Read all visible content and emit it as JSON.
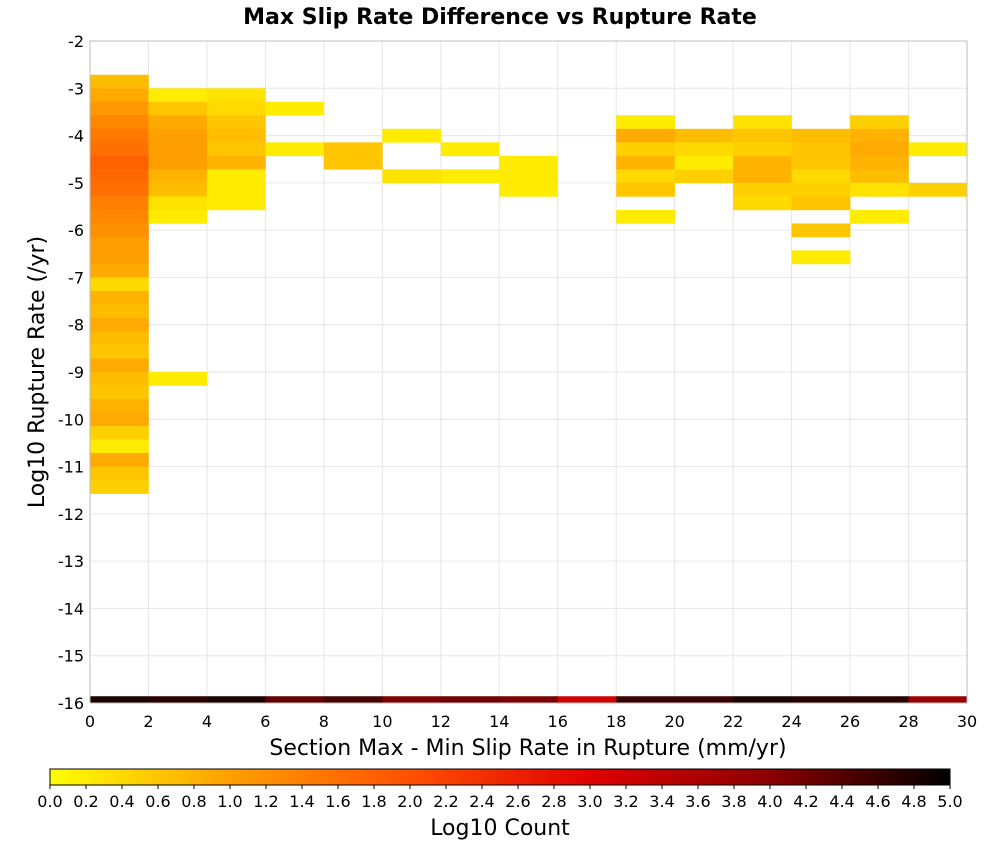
{
  "chart_data": {
    "type": "heatmap",
    "title": "Max Slip Rate Difference vs Rupture Rate",
    "xlabel": "Section Max - Min Slip Rate in Rupture (mm/yr)",
    "ylabel": "Log10 Rupture Rate (/yr)",
    "xlim": [
      0,
      30
    ],
    "ylim": [
      -16,
      -2
    ],
    "x_ticks": [
      "0",
      "2",
      "4",
      "6",
      "8",
      "10",
      "12",
      "14",
      "16",
      "18",
      "20",
      "22",
      "24",
      "26",
      "28",
      "30"
    ],
    "y_ticks": [
      "-2",
      "-3",
      "-4",
      "-5",
      "-6",
      "-7",
      "-8",
      "-9",
      "-10",
      "-11",
      "-12",
      "-13",
      "-14",
      "-15",
      "-16"
    ],
    "x_bin_width": 2,
    "y_bin_height": 0.2857,
    "colorbar": {
      "label": "Log10 Count",
      "range": [
        0,
        5
      ],
      "ticks": [
        "0.0",
        "0.2",
        "0.4",
        "0.6",
        "0.8",
        "1.0",
        "1.2",
        "1.4",
        "1.6",
        "1.8",
        "2.0",
        "2.2",
        "2.4",
        "2.6",
        "2.8",
        "3.0",
        "3.2",
        "3.4",
        "3.6",
        "3.8",
        "4.0",
        "4.2",
        "4.4",
        "4.6",
        "4.8",
        "5.0"
      ],
      "colors": [
        "#ffff00",
        "#ffa000",
        "#ff5000",
        "#e00000",
        "#8a0000",
        "#000000"
      ]
    },
    "cells": [
      {
        "x": 1,
        "y": -2.857,
        "v": 0.7
      },
      {
        "x": 1,
        "y": -3.143,
        "v": 0.9
      },
      {
        "x": 1,
        "y": -3.429,
        "v": 1.1
      },
      {
        "x": 1,
        "y": -3.714,
        "v": 1.3
      },
      {
        "x": 1,
        "y": -4.0,
        "v": 1.5
      },
      {
        "x": 1,
        "y": -4.286,
        "v": 1.6
      },
      {
        "x": 1,
        "y": -4.571,
        "v": 1.8
      },
      {
        "x": 1,
        "y": -4.857,
        "v": 1.7
      },
      {
        "x": 1,
        "y": -5.143,
        "v": 1.6
      },
      {
        "x": 1,
        "y": -5.429,
        "v": 1.4
      },
      {
        "x": 1,
        "y": -5.714,
        "v": 1.3
      },
      {
        "x": 1,
        "y": -6.0,
        "v": 1.2
      },
      {
        "x": 1,
        "y": -6.286,
        "v": 1.0
      },
      {
        "x": 1,
        "y": -6.571,
        "v": 1.0
      },
      {
        "x": 1,
        "y": -6.857,
        "v": 0.9
      },
      {
        "x": 1,
        "y": -7.143,
        "v": 0.4
      },
      {
        "x": 1,
        "y": -7.429,
        "v": 0.8
      },
      {
        "x": 1,
        "y": -7.714,
        "v": 0.7
      },
      {
        "x": 1,
        "y": -8.0,
        "v": 0.9
      },
      {
        "x": 1,
        "y": -8.286,
        "v": 0.7
      },
      {
        "x": 1,
        "y": -8.571,
        "v": 0.6
      },
      {
        "x": 1,
        "y": -8.857,
        "v": 0.9
      },
      {
        "x": 1,
        "y": -9.143,
        "v": 0.7
      },
      {
        "x": 1,
        "y": -9.429,
        "v": 0.6
      },
      {
        "x": 1,
        "y": -9.714,
        "v": 0.8
      },
      {
        "x": 1,
        "y": -10.0,
        "v": 0.9
      },
      {
        "x": 1,
        "y": -10.286,
        "v": 0.5
      },
      {
        "x": 1,
        "y": -10.571,
        "v": 0.2
      },
      {
        "x": 1,
        "y": -10.857,
        "v": 0.9
      },
      {
        "x": 1,
        "y": -11.143,
        "v": 0.6
      },
      {
        "x": 1,
        "y": -11.429,
        "v": 0.5
      },
      {
        "x": 3,
        "y": -3.143,
        "v": 0.2
      },
      {
        "x": 3,
        "y": -3.429,
        "v": 0.6
      },
      {
        "x": 3,
        "y": -3.714,
        "v": 0.9
      },
      {
        "x": 3,
        "y": -4.0,
        "v": 1.0
      },
      {
        "x": 3,
        "y": -4.286,
        "v": 1.0
      },
      {
        "x": 3,
        "y": -4.571,
        "v": 1.0
      },
      {
        "x": 3,
        "y": -4.857,
        "v": 0.8
      },
      {
        "x": 3,
        "y": -5.143,
        "v": 0.7
      },
      {
        "x": 3,
        "y": -5.429,
        "v": 0.3
      },
      {
        "x": 3,
        "y": -5.714,
        "v": 0.2
      },
      {
        "x": 3,
        "y": -9.143,
        "v": 0.2
      },
      {
        "x": 5,
        "y": -3.143,
        "v": 0.3
      },
      {
        "x": 5,
        "y": -3.429,
        "v": 0.4
      },
      {
        "x": 5,
        "y": -3.714,
        "v": 0.6
      },
      {
        "x": 5,
        "y": -4.0,
        "v": 0.7
      },
      {
        "x": 5,
        "y": -4.286,
        "v": 0.6
      },
      {
        "x": 5,
        "y": -4.571,
        "v": 0.8
      },
      {
        "x": 5,
        "y": -4.857,
        "v": 0.2
      },
      {
        "x": 5,
        "y": -5.143,
        "v": 0.2
      },
      {
        "x": 5,
        "y": -5.429,
        "v": 0.2
      },
      {
        "x": 7,
        "y": -3.429,
        "v": 0.2
      },
      {
        "x": 7,
        "y": -4.286,
        "v": 0.2
      },
      {
        "x": 9,
        "y": -4.286,
        "v": 0.6
      },
      {
        "x": 9,
        "y": -4.571,
        "v": 0.6
      },
      {
        "x": 11,
        "y": -4.0,
        "v": 0.2
      },
      {
        "x": 11,
        "y": -4.857,
        "v": 0.3
      },
      {
        "x": 13,
        "y": -4.286,
        "v": 0.2
      },
      {
        "x": 13,
        "y": -4.857,
        "v": 0.2
      },
      {
        "x": 15,
        "y": -4.571,
        "v": 0.2
      },
      {
        "x": 15,
        "y": -4.857,
        "v": 0.2
      },
      {
        "x": 15,
        "y": -5.143,
        "v": 0.2
      },
      {
        "x": 19,
        "y": -3.714,
        "v": 0.2
      },
      {
        "x": 19,
        "y": -4.0,
        "v": 0.9
      },
      {
        "x": 19,
        "y": -4.286,
        "v": 0.5
      },
      {
        "x": 19,
        "y": -4.571,
        "v": 0.8
      },
      {
        "x": 19,
        "y": -4.857,
        "v": 0.4
      },
      {
        "x": 19,
        "y": -5.143,
        "v": 0.6
      },
      {
        "x": 19,
        "y": -5.714,
        "v": 0.2
      },
      {
        "x": 21,
        "y": -4.0,
        "v": 0.7
      },
      {
        "x": 21,
        "y": -4.286,
        "v": 0.4
      },
      {
        "x": 21,
        "y": -4.571,
        "v": 0.2
      },
      {
        "x": 21,
        "y": -4.857,
        "v": 0.5
      },
      {
        "x": 23,
        "y": -3.714,
        "v": 0.3
      },
      {
        "x": 23,
        "y": -4.0,
        "v": 0.6
      },
      {
        "x": 23,
        "y": -4.286,
        "v": 0.5
      },
      {
        "x": 23,
        "y": -4.571,
        "v": 0.8
      },
      {
        "x": 23,
        "y": -4.857,
        "v": 0.8
      },
      {
        "x": 23,
        "y": -5.143,
        "v": 0.5
      },
      {
        "x": 23,
        "y": -5.429,
        "v": 0.4
      },
      {
        "x": 25,
        "y": -4.0,
        "v": 0.7
      },
      {
        "x": 25,
        "y": -4.286,
        "v": 0.6
      },
      {
        "x": 25,
        "y": -4.571,
        "v": 0.6
      },
      {
        "x": 25,
        "y": -4.857,
        "v": 0.4
      },
      {
        "x": 25,
        "y": -5.143,
        "v": 0.5
      },
      {
        "x": 25,
        "y": -5.429,
        "v": 0.6
      },
      {
        "x": 25,
        "y": -6.0,
        "v": 0.6
      },
      {
        "x": 25,
        "y": -6.571,
        "v": 0.2
      },
      {
        "x": 27,
        "y": -3.714,
        "v": 0.5
      },
      {
        "x": 27,
        "y": -4.0,
        "v": 0.8
      },
      {
        "x": 27,
        "y": -4.286,
        "v": 0.9
      },
      {
        "x": 27,
        "y": -4.571,
        "v": 0.8
      },
      {
        "x": 27,
        "y": -4.857,
        "v": 0.7
      },
      {
        "x": 27,
        "y": -5.143,
        "v": 0.3
      },
      {
        "x": 27,
        "y": -5.714,
        "v": 0.2
      },
      {
        "x": 29,
        "y": -4.286,
        "v": 0.2
      },
      {
        "x": 29,
        "y": -5.143,
        "v": 0.5
      },
      {
        "x": 1,
        "y": -16.0,
        "v": 4.8
      },
      {
        "x": 3,
        "y": -16.0,
        "v": 4.7
      },
      {
        "x": 5,
        "y": -16.0,
        "v": 4.8
      },
      {
        "x": 7,
        "y": -16.0,
        "v": 4.3
      },
      {
        "x": 9,
        "y": -16.0,
        "v": 4.5
      },
      {
        "x": 11,
        "y": -16.0,
        "v": 4.1
      },
      {
        "x": 13,
        "y": -16.0,
        "v": 4.2
      },
      {
        "x": 15,
        "y": -16.0,
        "v": 4.1
      },
      {
        "x": 17,
        "y": -16.0,
        "v": 3.2
      },
      {
        "x": 19,
        "y": -16.0,
        "v": 4.6
      },
      {
        "x": 21,
        "y": -16.0,
        "v": 4.6
      },
      {
        "x": 23,
        "y": -16.0,
        "v": 4.8
      },
      {
        "x": 25,
        "y": -16.0,
        "v": 4.7
      },
      {
        "x": 27,
        "y": -16.0,
        "v": 4.7
      },
      {
        "x": 29,
        "y": -16.0,
        "v": 3.8
      }
    ]
  }
}
